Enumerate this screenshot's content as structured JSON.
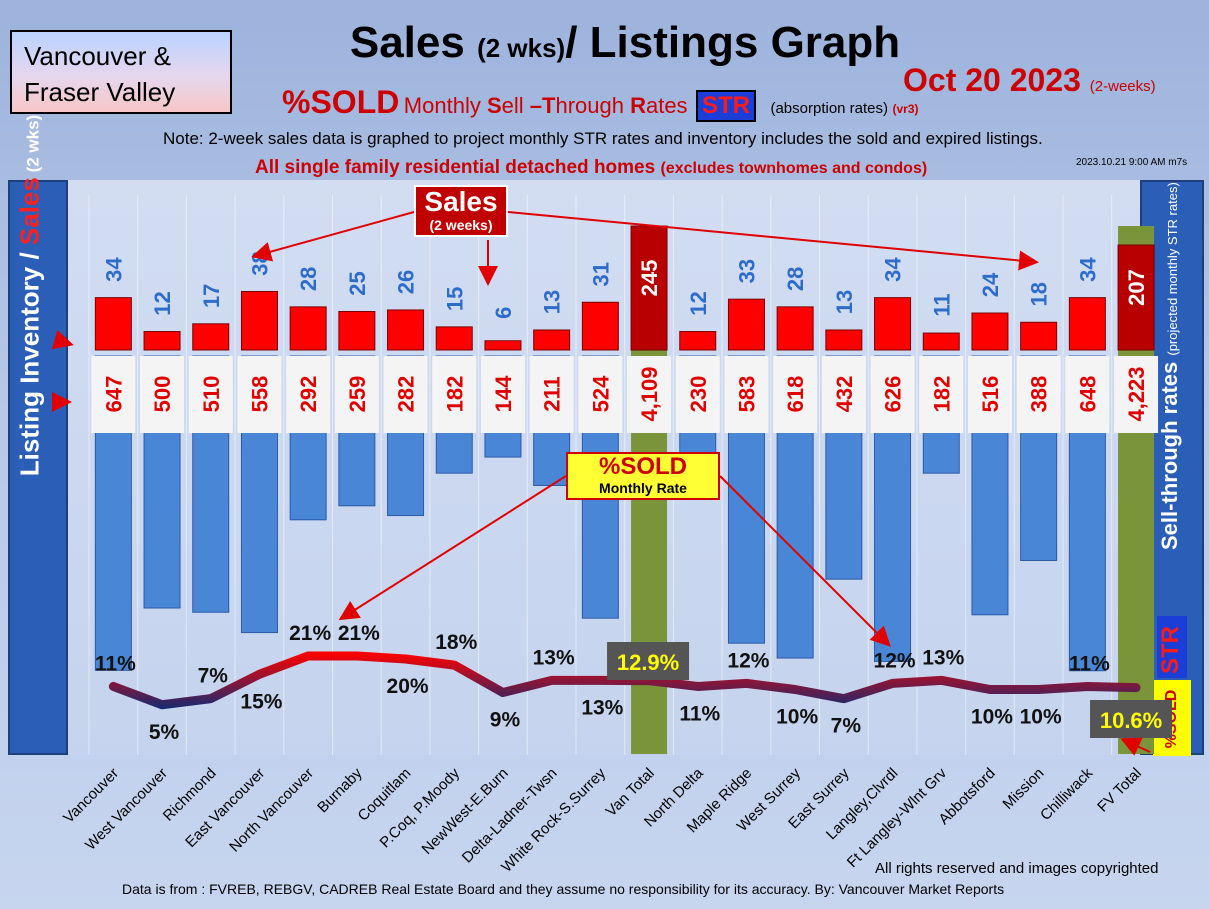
{
  "header": {
    "region_line1": "Vancouver &",
    "region_line2": "Fraser Valley",
    "title_main": "Sales ",
    "title_small": "(2 wks)",
    "title_end": "/ Listings Graph",
    "date_main": "Oct 20  2023",
    "date_small": "(2-weeks)",
    "subtitle_sold": "%SOLD",
    "subtitle_monthly": "Monthly ",
    "subtitle_s": "S",
    "subtitle_ell": "ell ",
    "subtitle_t": "–T",
    "subtitle_hrough": "hrough ",
    "subtitle_r": "R",
    "subtitle_ates": "ates",
    "subtitle_str": "STR",
    "subtitle_absorption": "(absorption rates)",
    "subtitle_version": "(vr3)",
    "note": "Note: 2-week sales data is graphed to project monthly STR rates and inventory includes the sold and expired listings.",
    "scope_main": "All single family residential detached homes ",
    "scope_small": "(excludes townhomes and condos)",
    "timestamp": "2023.10.21 9:00 AM m7s"
  },
  "axes": {
    "left_label_part1": "Listing Inventory / ",
    "left_label_part2": "Sales",
    "left_label_part3": " (2 wks)",
    "right_label_main": "Sell-through rates",
    "right_label_small": "(projected monthly STR rates)",
    "right_badge_str": "STR",
    "right_badge_sold": "%SOLD"
  },
  "callouts": {
    "sales_line1": "Sales",
    "sales_line2": "(2 weeks)",
    "sold_line1": "%SOLD",
    "sold_line2": "Monthly Rate"
  },
  "footer": {
    "rights": "All rights reserved and  images copyrighted",
    "source": "Data is from : FVREB, REBGV, CADREB Real Estate Board and they assume no responsibility for its accuracy. By: Vancouver Market Reports"
  },
  "colors": {
    "sales_bar": "#ff0000",
    "inventory_bar": "#4a86d6",
    "total_bar": "#7a9439",
    "total_sales_bar": "#b80000",
    "str_line_high": "#ff0000",
    "str_line_low": "#1a2a6e"
  },
  "chart_data": {
    "type": "bar",
    "categories": [
      "Vancouver",
      "West Vancouver",
      "Richmond",
      "East Vancouver",
      "North Vancouver",
      "Burnaby",
      "Coquitlam",
      "P.Coq, P.Moody",
      "NewWest-E.Burn",
      "Delta-Ladner-Twsn",
      "White Rock-S.Surrey",
      "Van Total",
      "North Delta",
      "Maple Ridge",
      "West Surrey",
      "East Surrey",
      "Langley,Clvrdl",
      "Ft Langley-Wlnt Grv",
      "Abbotsford",
      "Mission",
      "Chilliwack",
      "FV Total"
    ],
    "series": [
      {
        "name": "Sales",
        "values": [
          34,
          12,
          17,
          38,
          28,
          25,
          26,
          15,
          6,
          13,
          31,
          245,
          12,
          33,
          28,
          13,
          34,
          11,
          24,
          18,
          34,
          207
        ]
      },
      {
        "name": "Listing Inventory",
        "values": [
          647,
          500,
          510,
          558,
          292,
          259,
          282,
          182,
          144,
          211,
          524,
          4109,
          230,
          583,
          618,
          432,
          626,
          182,
          516,
          388,
          648,
          4223
        ]
      },
      {
        "name": "%SOLD Monthly STR",
        "values": [
          11,
          5,
          7,
          15,
          21,
          21,
          20,
          18,
          9,
          13,
          13,
          12.9,
          11,
          12,
          10,
          7,
          12,
          13,
          10,
          10,
          11,
          10.6
        ]
      }
    ],
    "sales_labels": [
      "34",
      "12",
      "17",
      "38",
      "28",
      "25",
      "26",
      "15",
      "6",
      "13",
      "31",
      "245",
      "12",
      "33",
      "28",
      "13",
      "34",
      "11",
      "24",
      "18",
      "34",
      "207"
    ],
    "inventory_labels": [
      "647",
      "500",
      "510",
      "558",
      "292",
      "259",
      "282",
      "182",
      "144",
      "211",
      "524",
      "4,109",
      "230",
      "583",
      "618",
      "432",
      "626",
      "182",
      "516",
      "388",
      "648",
      "4,223"
    ],
    "str_labels": [
      "11%",
      "5%",
      "7%",
      "15%",
      "21%",
      "21%",
      "20%",
      "18%",
      "9%",
      "13%",
      "13%",
      "12.9%",
      "11%",
      "12%",
      "10%",
      "7%",
      "12%",
      "13%",
      "10%",
      "10%",
      "11%",
      "10.6%"
    ],
    "total_indices": [
      11,
      21
    ],
    "legend": "none"
  }
}
